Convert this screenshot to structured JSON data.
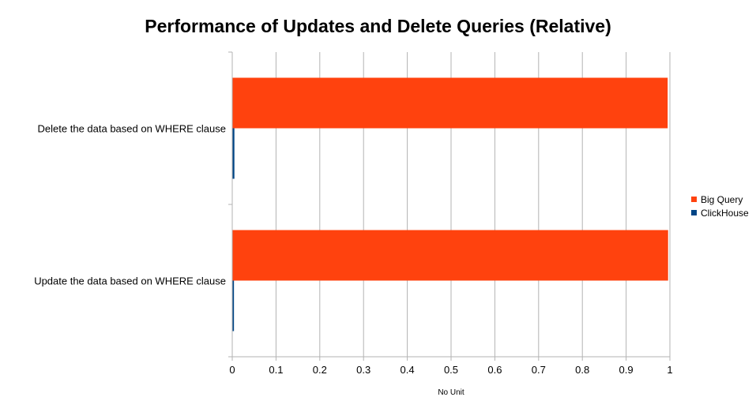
{
  "chart_data": {
    "type": "bar",
    "orientation": "horizontal",
    "title": "Performance of Updates and Delete Queries (Relative)",
    "xlabel": "No Unit",
    "ylabel": "",
    "categories": [
      "Delete the data based on WHERE clause",
      "Update the data based on WHERE clause"
    ],
    "series": [
      {
        "name": "Big Query",
        "color": "#ff420e",
        "values": [
          0.994,
          0.995
        ]
      },
      {
        "name": "ClickHouse",
        "color": "#004586",
        "values": [
          0.004,
          0.003
        ]
      }
    ],
    "xlim": [
      0,
      1
    ],
    "xticks": [
      "0",
      "0.1",
      "0.2",
      "0.3",
      "0.4",
      "0.5",
      "0.6",
      "0.7",
      "0.8",
      "0.9",
      "1"
    ],
    "grid": true,
    "legend_position": "right"
  }
}
